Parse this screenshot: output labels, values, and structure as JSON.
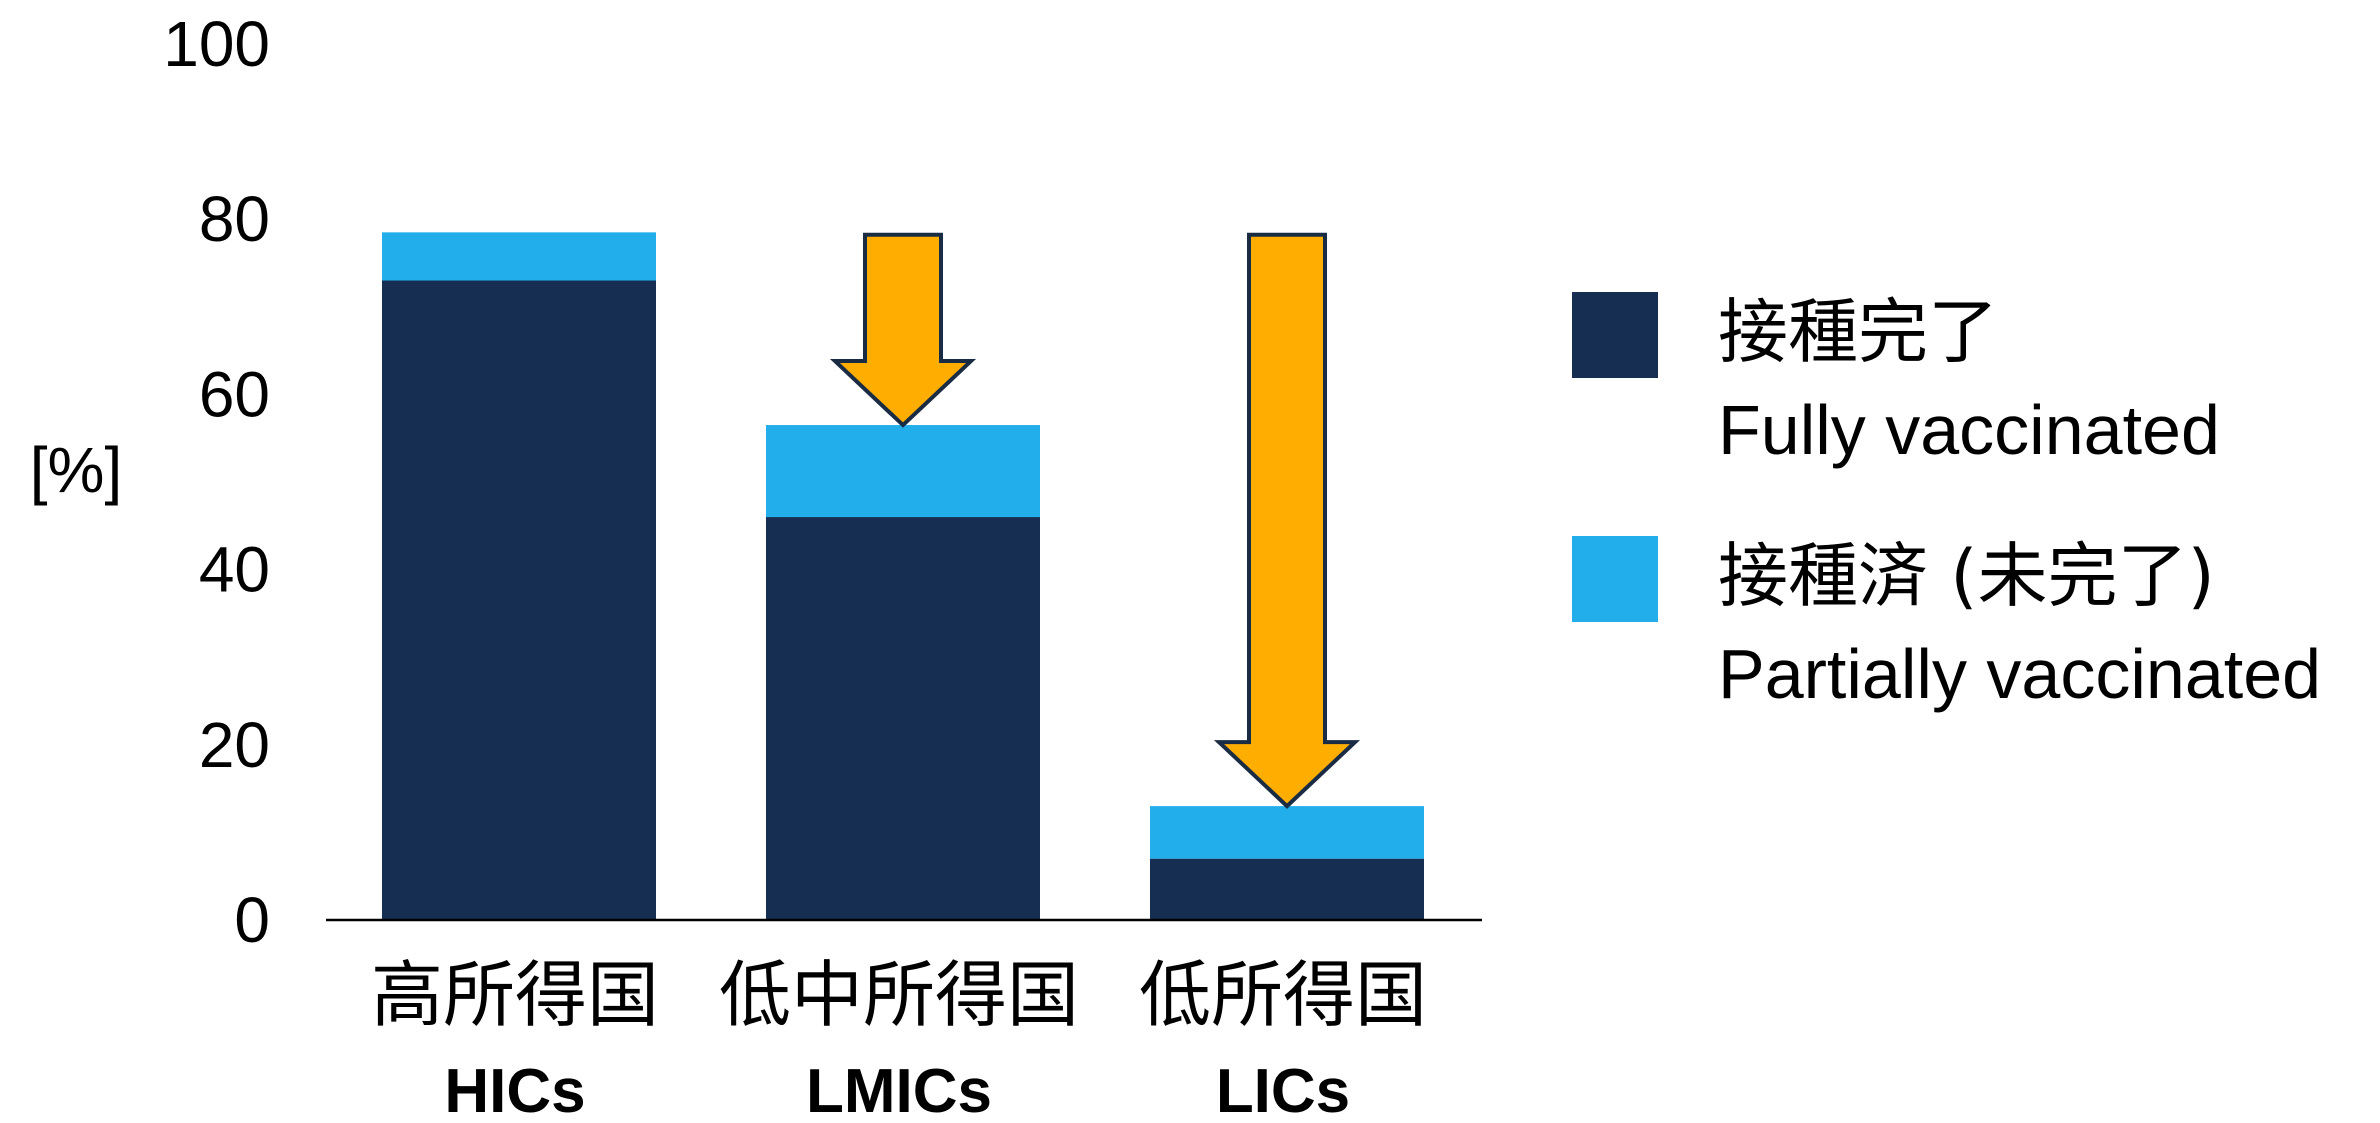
{
  "chart_data": {
    "type": "bar",
    "stacked": true,
    "ylabel": "[%]",
    "ylim": [
      0,
      100
    ],
    "yticks": [
      "0",
      "20",
      "40",
      "60",
      "80",
      "100"
    ],
    "categories": [
      {
        "jp": "高所得国",
        "en": "HICs"
      },
      {
        "jp": "低中所得国",
        "en": "LMICs"
      },
      {
        "jp": "低所得国",
        "en": "LICs"
      }
    ],
    "series": [
      {
        "key": "fully",
        "name_jp": "接種完了",
        "name_en": "Fully vaccinated",
        "color": "#152E52",
        "values": [
          73,
          46,
          7
        ]
      },
      {
        "key": "partial",
        "name_jp": "接種済 (未完了)",
        "name_en": "Partially vaccinated",
        "color": "#22ADEB",
        "values": [
          5.5,
          10.5,
          6
        ]
      }
    ],
    "arrows": {
      "color": "#FFAE00",
      "outline": "#1A2B44",
      "from_value": 78,
      "targets": [
        "LMICs",
        "LICs"
      ]
    },
    "legend_position": "right",
    "grid": false
  }
}
